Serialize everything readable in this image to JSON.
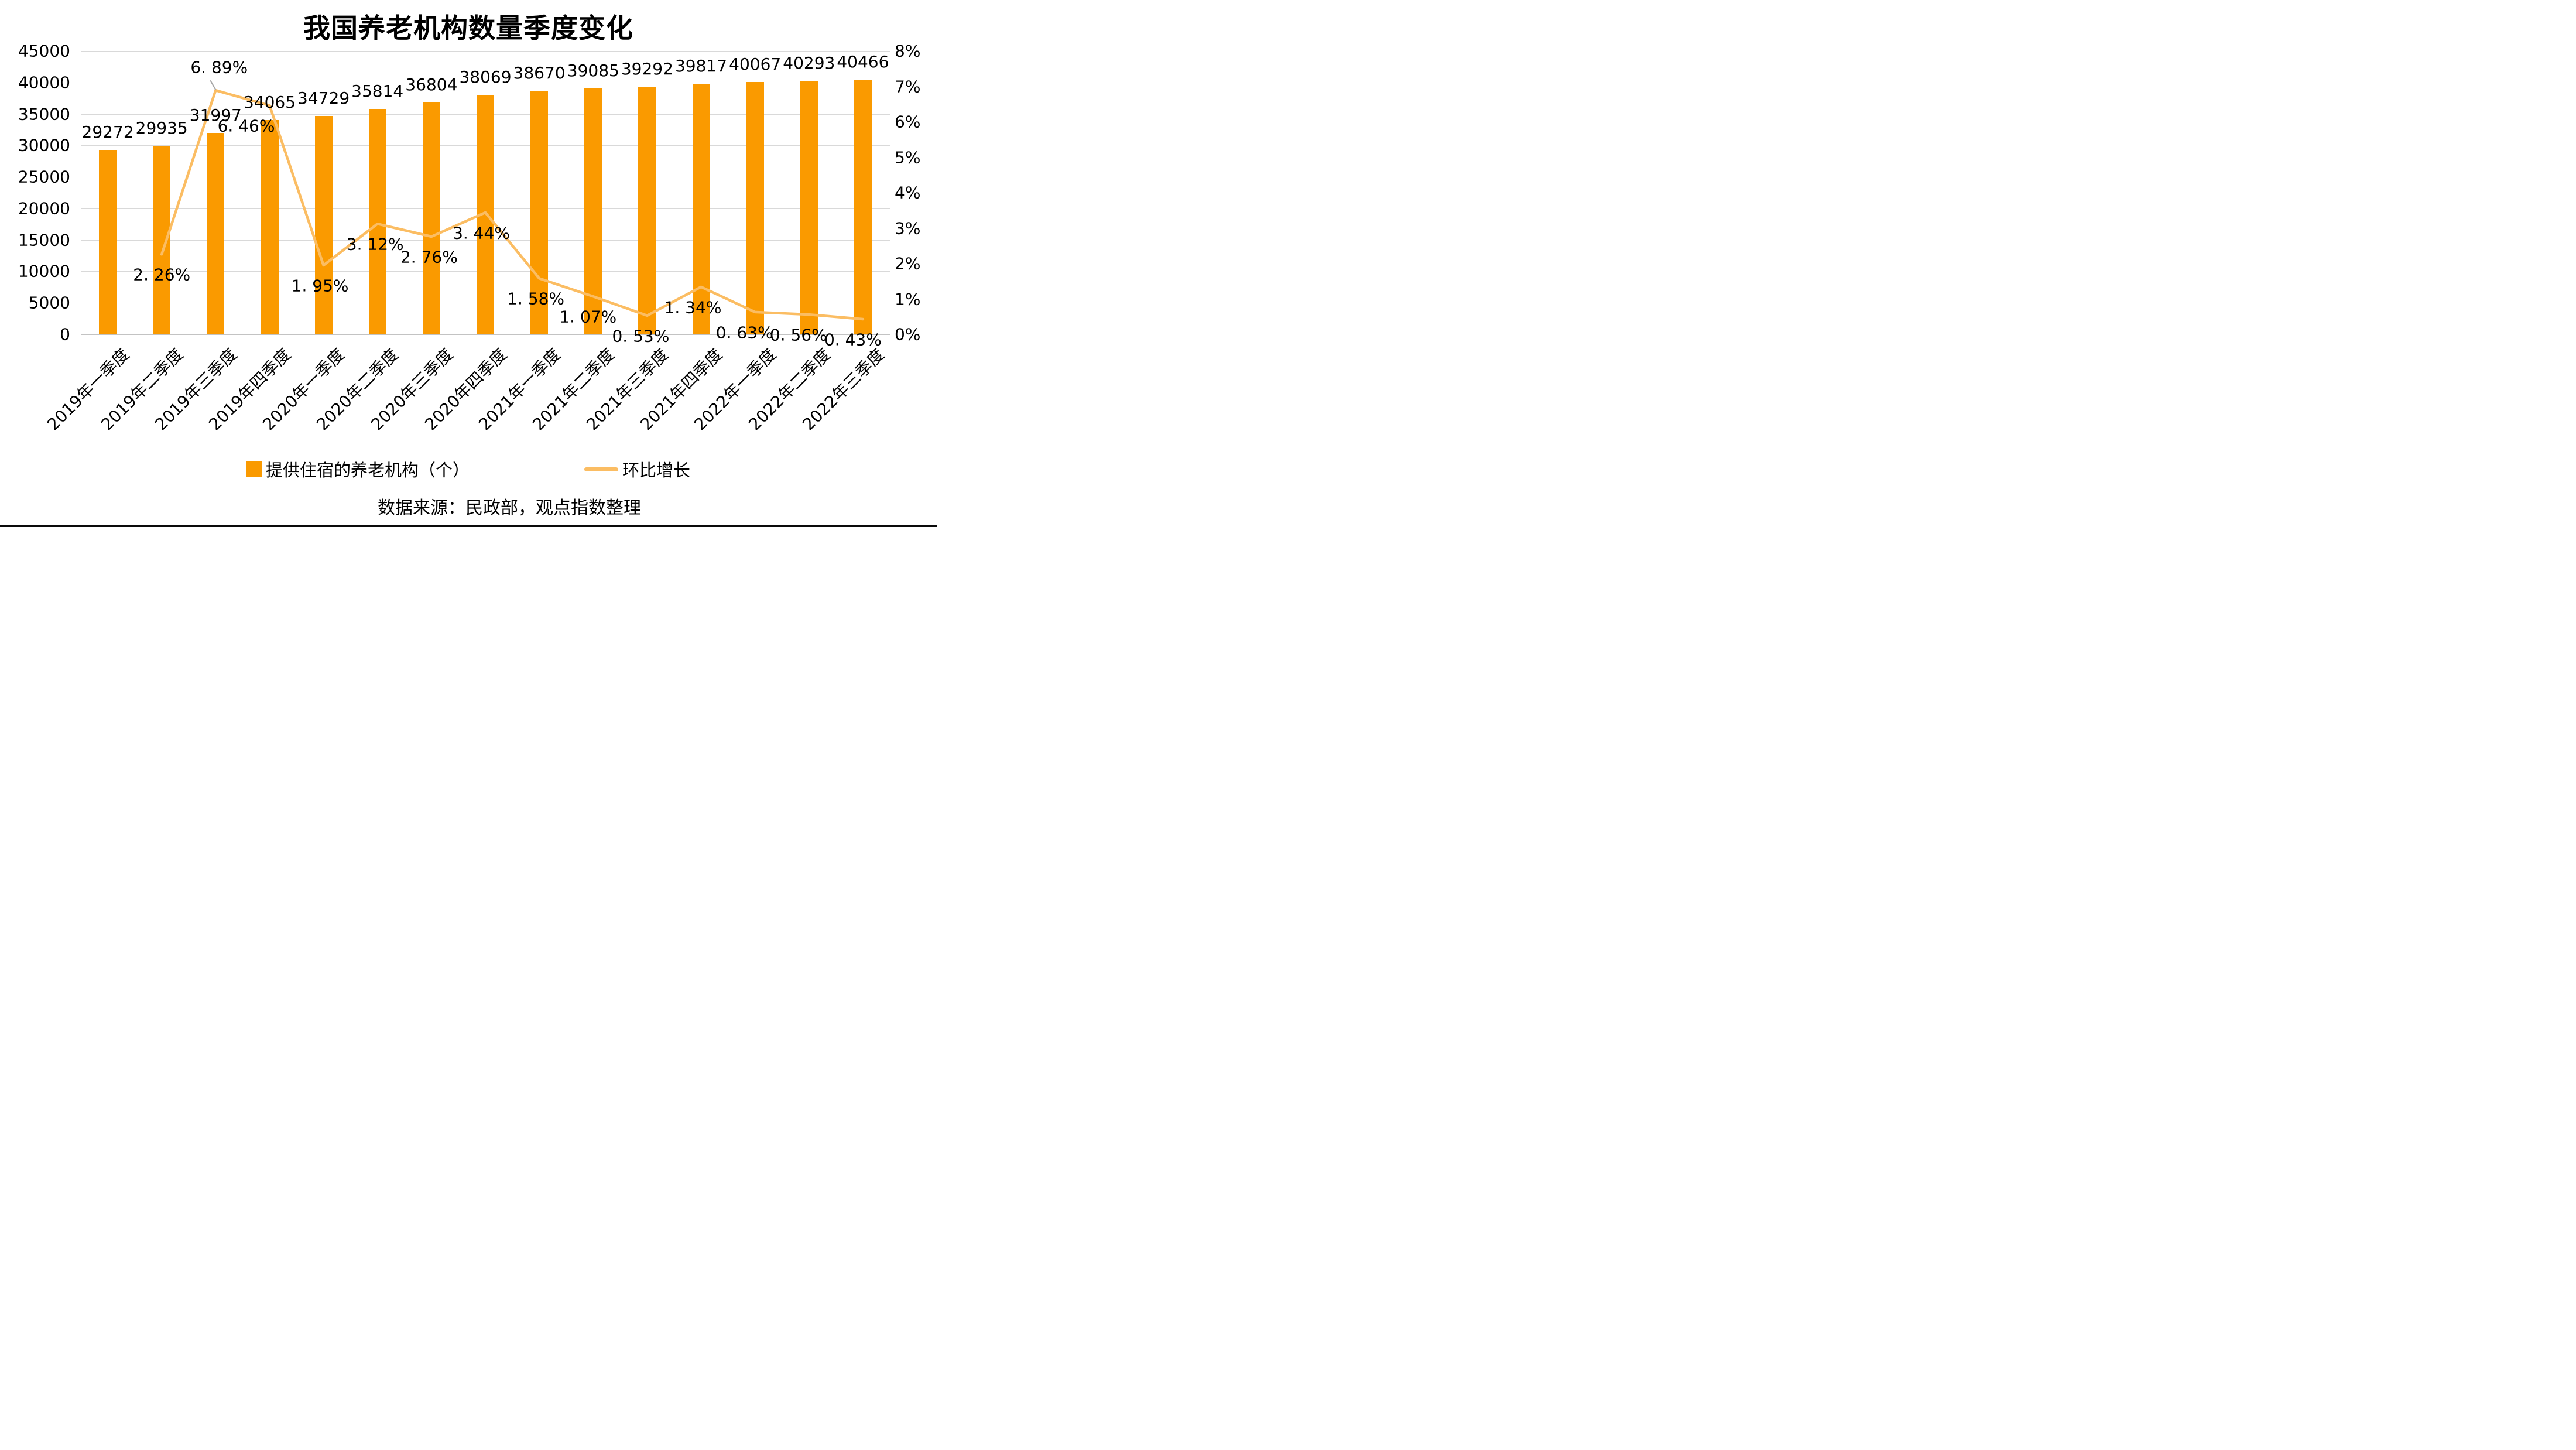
{
  "title": "我国养老机构数量季度变化",
  "source": "数据来源：民政部，观点指数整理",
  "legend": {
    "bars": "提供住宿的养老机构（个）",
    "line": "环比增长"
  },
  "colors": {
    "bar": "#FA9A00",
    "line": "#FBBD63",
    "gridline": "#D9D9D9",
    "axis_line": "#C3C3C3",
    "text": "#000000",
    "leader": "#A6A6A6"
  },
  "chart_data": {
    "type": "bar",
    "subtype": "combo-bar-line",
    "title": "我国养老机构数量季度变化",
    "categories": [
      "2019年一季度",
      "2019年二季度",
      "2019年三季度",
      "2019年四季度",
      "2020年一季度",
      "2020年二季度",
      "2020年三季度",
      "2020年四季度",
      "2021年一季度",
      "2021年二季度",
      "2021年三季度",
      "2021年四季度",
      "2022年一季度",
      "2022年二季度",
      "2022年三季度"
    ],
    "series": [
      {
        "name": "提供住宿的养老机构（个）",
        "type": "bar",
        "y_axis": "left",
        "color": "#FA9A00",
        "values": [
          29272,
          29935,
          31997,
          34065,
          34729,
          35814,
          36804,
          38069,
          38670,
          39085,
          39292,
          39817,
          40067,
          40293,
          40466
        ]
      },
      {
        "name": "环比增长",
        "type": "line",
        "y_axis": "right",
        "color": "#FBBD63",
        "values": [
          null,
          2.26,
          6.89,
          6.46,
          1.95,
          3.12,
          2.76,
          3.44,
          1.58,
          1.07,
          0.53,
          1.34,
          0.63,
          0.56,
          0.43
        ],
        "labels": [
          null,
          "2. 26%",
          "6. 89%",
          "6. 46%",
          "1. 95%",
          "3. 12%",
          "2. 76%",
          "3. 44%",
          "1. 58%",
          "1. 07%",
          "0. 53%",
          "1. 34%",
          "0. 63%",
          "0. 56%",
          "0. 43%"
        ]
      }
    ],
    "left_axis": {
      "min": 0,
      "max": 45000,
      "step": 5000,
      "labels": [
        "0",
        "5000",
        "10000",
        "15000",
        "20000",
        "25000",
        "30000",
        "35000",
        "40000",
        "45000"
      ]
    },
    "right_axis": {
      "min": 0,
      "max": 8,
      "step": 1,
      "labels": [
        "0%",
        "1%",
        "2%",
        "3%",
        "4%",
        "5%",
        "6%",
        "7%",
        "8%"
      ]
    },
    "grid": true,
    "legend_position": "bottom",
    "xlabel": "",
    "ylabel": ""
  }
}
